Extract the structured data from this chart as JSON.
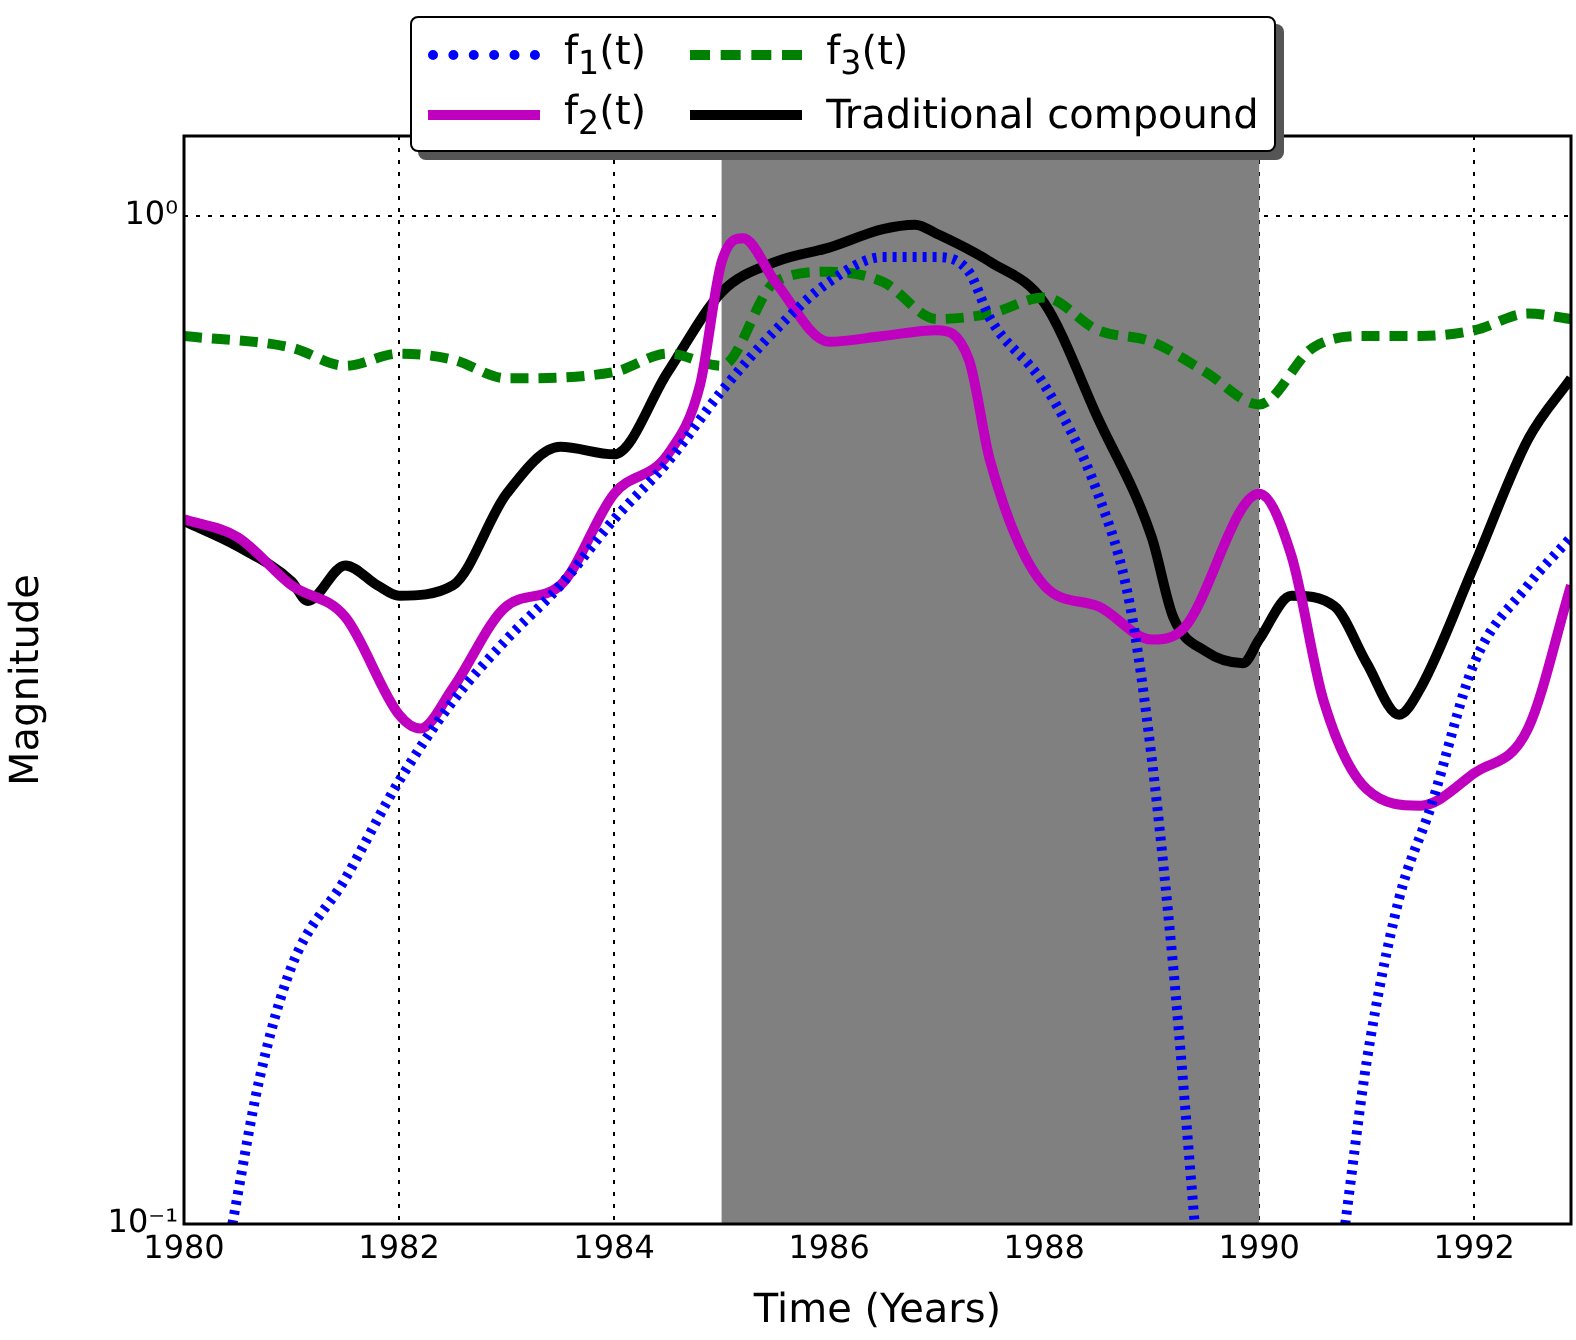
{
  "chart_data": {
    "type": "line",
    "xlabel": "Time (Years)",
    "ylabel": "Magnitude",
    "log": "y",
    "grid": true,
    "legend": "top",
    "xlim": [
      1980,
      1992.9
    ],
    "xticks": [
      1980,
      1982,
      1984,
      1986,
      1988,
      1990,
      1992
    ],
    "ylim": [
      0.1,
      1.2
    ],
    "yticks": [
      {
        "value": 0.1,
        "label": "10⁻¹"
      },
      {
        "value": 1,
        "label": "10⁰"
      }
    ],
    "bands": [
      {
        "axis": "x",
        "from": 1985,
        "to": 1990,
        "color": "#808080"
      }
    ],
    "series": [
      {
        "name": "f$_{1}$(t)",
        "color": "#0000ff",
        "line_style": "dotted",
        "x": [
          1980.45,
          1980.7,
          1981,
          1981.5,
          1982,
          1982.5,
          1983,
          1983.5,
          1984,
          1984.5,
          1985,
          1985.5,
          1986,
          1986.5,
          1987,
          1987.3,
          1987.5,
          1988,
          1988.5,
          1988.8,
          1989,
          1989.2,
          1989.4,
          1990.1,
          1990.8,
          1991,
          1991.3,
          1991.6,
          1992,
          1992.5,
          1992.9
        ],
        "values": [
          0.1,
          0.139,
          0.18,
          0.22,
          0.275,
          0.33,
          0.38,
          0.43,
          0.5,
          0.57,
          0.67,
          0.77,
          0.86,
          0.91,
          0.91,
          0.88,
          0.79,
          0.68,
          0.53,
          0.41,
          0.29,
          0.18,
          0.1,
          null,
          0.1,
          0.145,
          0.21,
          0.26,
          0.36,
          0.43,
          0.48
        ]
      },
      {
        "name": "f$_{2}$(t)",
        "color": "#bf00bf",
        "line_style": "solid",
        "x": [
          1980,
          1980.5,
          1981,
          1981.5,
          1982,
          1982.2,
          1982.5,
          1983,
          1983.5,
          1984,
          1984.5,
          1984.8,
          1985,
          1985.2,
          1985.5,
          1986,
          1986.5,
          1987,
          1987.3,
          1987.5,
          1988,
          1988.5,
          1989,
          1989.3,
          1990,
          1990.3,
          1990.6,
          1991,
          1991.5,
          1992,
          1992.5,
          1992.9
        ],
        "values": [
          0.5,
          0.48,
          0.43,
          0.4,
          0.32,
          0.31,
          0.34,
          0.41,
          0.43,
          0.53,
          0.58,
          0.68,
          0.9,
          0.95,
          0.86,
          0.75,
          0.76,
          0.77,
          0.72,
          0.57,
          0.43,
          0.41,
          0.38,
          0.39,
          0.53,
          0.46,
          0.33,
          0.27,
          0.26,
          0.28,
          0.31,
          0.43
        ]
      },
      {
        "name": "f$_{3}$(t)",
        "color": "#008000",
        "line_style": "dashed",
        "x": [
          1980,
          1981,
          1981.5,
          1982,
          1982.5,
          1983,
          1984,
          1984.5,
          1985,
          1985.5,
          1986,
          1986.5,
          1987,
          1987.5,
          1988,
          1988.5,
          1989,
          1989.5,
          1990,
          1990.5,
          1991,
          1991.5,
          1992,
          1992.5,
          1992.9
        ],
        "values": [
          0.76,
          0.74,
          0.71,
          0.73,
          0.72,
          0.69,
          0.7,
          0.73,
          0.71,
          0.86,
          0.88,
          0.86,
          0.79,
          0.8,
          0.83,
          0.77,
          0.75,
          0.7,
          0.65,
          0.74,
          0.76,
          0.76,
          0.77,
          0.8,
          0.79
        ]
      },
      {
        "name": "Traditional compound",
        "color": "#000000",
        "line_style": "solid",
        "x": [
          1980,
          1980.5,
          1981,
          1981.15,
          1981.5,
          1981.8,
          1982,
          1982.5,
          1983,
          1983.5,
          1984,
          1984.5,
          1985,
          1985.5,
          1986,
          1986.5,
          1986.8,
          1987,
          1987.5,
          1988,
          1988.5,
          1989,
          1989.2,
          1989.5,
          1989.85,
          1990,
          1990.3,
          1990.7,
          1991,
          1991.3,
          1991.5,
          1992,
          1992.5,
          1992.9
        ],
        "values": [
          0.498,
          0.47,
          0.434,
          0.415,
          0.45,
          0.43,
          0.42,
          0.43,
          0.53,
          0.59,
          0.58,
          0.7,
          0.84,
          0.9,
          0.93,
          0.97,
          0.98,
          0.96,
          0.9,
          0.82,
          0.63,
          0.48,
          0.4,
          0.37,
          0.36,
          0.38,
          0.42,
          0.41,
          0.36,
          0.32,
          0.34,
          0.45,
          0.6,
          0.69
        ]
      }
    ]
  }
}
